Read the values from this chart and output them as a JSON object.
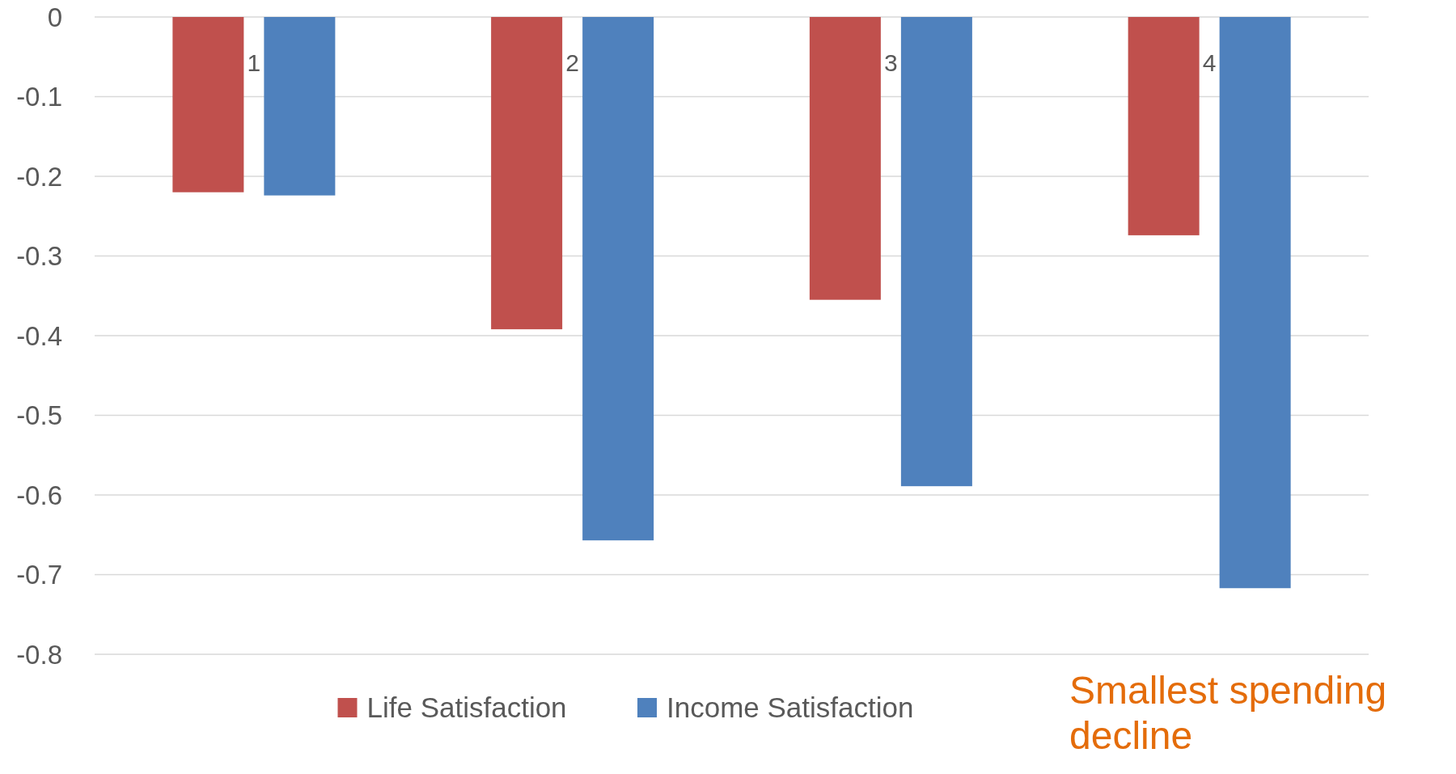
{
  "chart_data": {
    "type": "bar",
    "categories": [
      "1",
      "2",
      "3",
      "4"
    ],
    "series": [
      {
        "name": "Life Satisfaction",
        "color": "#c0504d",
        "values": [
          -0.22,
          -0.392,
          -0.355,
          -0.274
        ]
      },
      {
        "name": "Income Satisfaction",
        "color": "#4f81bd",
        "values": [
          -0.224,
          -0.657,
          -0.589,
          -0.717
        ]
      }
    ],
    "ylim": [
      -0.8,
      0
    ],
    "yticks": [
      0,
      -0.1,
      -0.2,
      -0.3,
      -0.4,
      -0.5,
      -0.6,
      -0.7,
      -0.8
    ],
    "grid": "y",
    "legend": "bottom",
    "annotations": [
      "Smallest spending decline"
    ]
  }
}
